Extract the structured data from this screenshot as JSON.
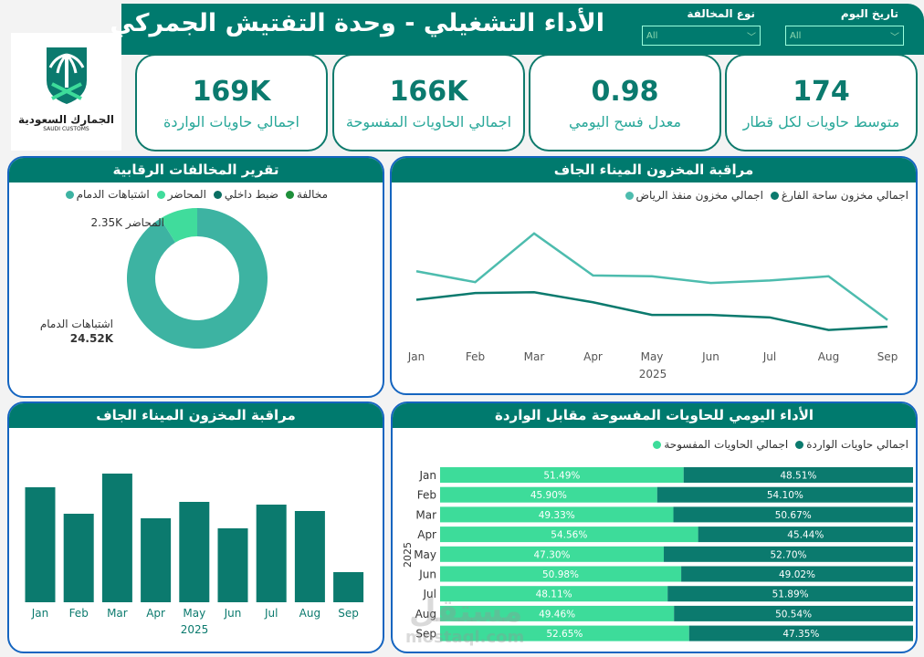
{
  "header": {
    "title": "الأداء التشغيلي - وحدة التفتيش الجمركي",
    "slicers": [
      {
        "label": "تاريخ اليوم",
        "value": "All"
      },
      {
        "label": "نوع المخالفة",
        "value": "All"
      }
    ]
  },
  "logo": {
    "ar": "الجمارك السعودية",
    "en": "SAUDI CUSTOMS"
  },
  "kpis": [
    {
      "value": "174",
      "label": "متوسط حاويات لكل قطار"
    },
    {
      "value": "0.98",
      "label": "معدل فسح اليومي"
    },
    {
      "value": "166K",
      "label": "اجمالي الحاويات المفسوحة"
    },
    {
      "value": "169K",
      "label": "اجمالي حاويات الواردة"
    }
  ],
  "colors": {
    "brand": "#007a6e",
    "panel_border": "#1565c0"
  },
  "chart_data": [
    {
      "type": "pie",
      "title": "تقرير المخالفات الرقابية",
      "legend": [
        {
          "name": "مخالفة",
          "color": "#1e8f3a"
        },
        {
          "name": "ضبط داخلي",
          "color": "#0b6e62"
        },
        {
          "name": "المحاضر",
          "color": "#40dc9c"
        },
        {
          "name": "اشتباهات الدمام",
          "color": "#3db3a2"
        }
      ],
      "slices": [
        {
          "name": "اشتباهات الدمام",
          "value": 24.52,
          "label": "24.52K",
          "color": "#3db3a2"
        },
        {
          "name": "المحاضر",
          "value": 2.35,
          "label": "2.35K",
          "color": "#40dc9c"
        }
      ]
    },
    {
      "type": "line",
      "title": "مراقبة المخزون الميناء الجاف",
      "xlabel": "2025",
      "categories": [
        "Jan",
        "Feb",
        "Mar",
        "Apr",
        "May",
        "Jun",
        "Jul",
        "Aug",
        "Sep"
      ],
      "series": [
        {
          "name": "اجمالي مخزون ساحة الفارغ",
          "color": "#0b7a6e",
          "values": [
            44,
            52,
            53,
            41,
            26,
            26,
            23,
            8,
            12
          ]
        },
        {
          "name": "اجمالي مخزون منفذ الرياض",
          "color": "#4dbcae",
          "values": [
            78,
            65,
            123,
            73,
            72,
            64,
            67,
            72,
            20
          ]
        }
      ]
    },
    {
      "type": "bar",
      "title": "مراقبة المخزون الميناء الجاف",
      "xlabel": "2025",
      "color": "#0b7a6e",
      "categories": [
        "Jan",
        "Feb",
        "Mar",
        "Apr",
        "May",
        "Jun",
        "Jul",
        "Aug",
        "Sep"
      ],
      "values": [
        126,
        97,
        141,
        92,
        110,
        81,
        107,
        100,
        33
      ]
    },
    {
      "type": "bar",
      "title": "الأداء اليومي للحاويات المفسوحة مقابل الواردة",
      "ylabel": "2025",
      "stacked": "100%",
      "categories": [
        "Jan",
        "Feb",
        "Mar",
        "Apr",
        "May",
        "Jun",
        "Jul",
        "Aug",
        "Sep"
      ],
      "series": [
        {
          "name": "اجمالي الحاويات المفسوحة",
          "color": "#3ddc9a",
          "values": [
            51.49,
            45.9,
            49.33,
            54.56,
            47.3,
            50.98,
            48.11,
            49.46,
            52.65
          ]
        },
        {
          "name": "اجمالي حاويات الواردة",
          "color": "#0b7a6e",
          "values": [
            48.51,
            54.1,
            50.67,
            45.44,
            52.7,
            49.02,
            51.89,
            50.54,
            47.35
          ]
        }
      ]
    }
  ],
  "watermark": {
    "ar": "مستقل",
    "en": "mostaql.com"
  }
}
